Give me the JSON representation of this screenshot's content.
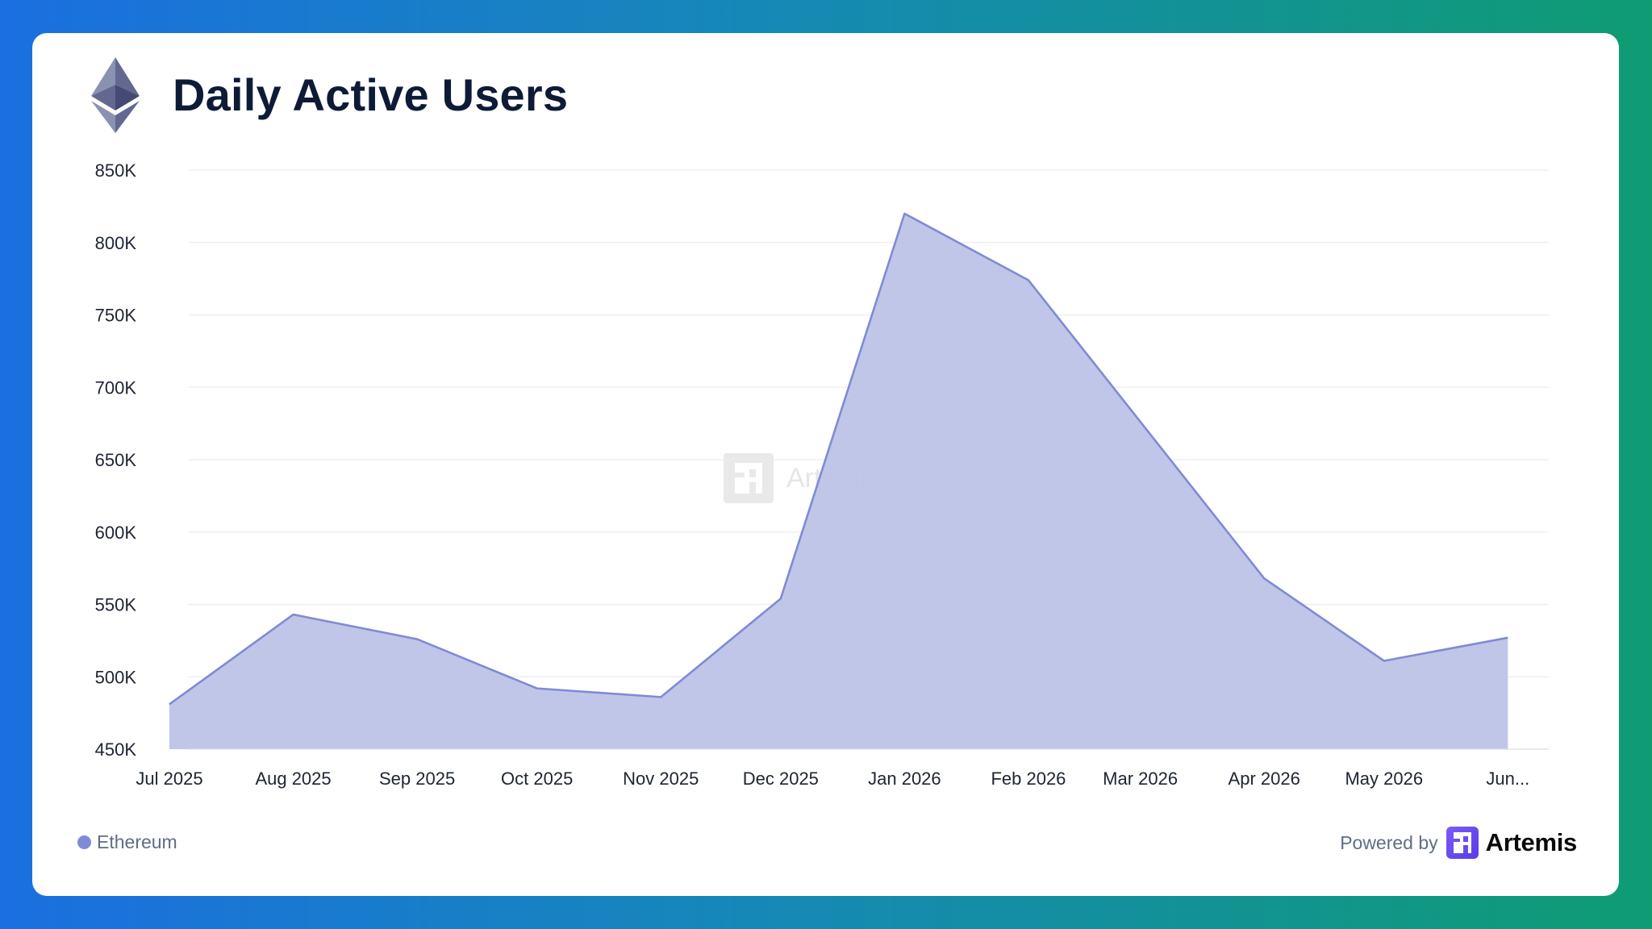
{
  "header": {
    "title": "Daily Active Users",
    "logo_icon": "ethereum-icon"
  },
  "watermark": {
    "text": "Artemis",
    "icon": "artemis-logo-icon"
  },
  "legend": {
    "label": "Ethereum",
    "color": "#7f8bd4"
  },
  "footer": {
    "powered_by": "Powered by",
    "brand": "Artemis",
    "brand_color": "#6b4bf0"
  },
  "colors": {
    "line": "#7f8bd4",
    "fill": "#bcc3e7",
    "grid": "#ececf0",
    "axis_text": "#1d2433",
    "title": "#0d1b36"
  },
  "chart_data": {
    "type": "area",
    "title": "Daily Active Users",
    "xlabel": "",
    "ylabel": "",
    "ylim": [
      450000,
      850000
    ],
    "yticks": [
      450000,
      500000,
      550000,
      600000,
      650000,
      700000,
      750000,
      800000,
      850000
    ],
    "ytick_labels": [
      "450K",
      "500K",
      "550K",
      "600K",
      "650K",
      "700K",
      "750K",
      "800K",
      "850K"
    ],
    "xlim": [
      "2025-07-01",
      "2026-06-08"
    ],
    "xtick_dates": [
      "2025-07-01",
      "2025-08-01",
      "2025-09-01",
      "2025-10-01",
      "2025-11-01",
      "2025-12-01",
      "2026-01-01",
      "2026-02-01",
      "2026-03-01",
      "2026-04-01",
      "2026-05-01",
      "2026-06-01"
    ],
    "xtick_labels": [
      "Jul 2025",
      "Aug 2025",
      "Sep 2025",
      "Oct 2025",
      "Nov 2025",
      "Dec 2025",
      "Jan 2026",
      "Feb 2026",
      "Mar 2026",
      "Apr 2026",
      "May 2026",
      "Jun..."
    ],
    "grid": true,
    "legend_position": "bottom-left",
    "series": [
      {
        "name": "Ethereum",
        "x": [
          "2025-07-01",
          "2025-08-01",
          "2025-09-01",
          "2025-10-01",
          "2025-11-01",
          "2025-12-01",
          "2026-01-01",
          "2026-02-01",
          "2026-04-01",
          "2026-05-01",
          "2026-06-01"
        ],
        "values": [
          481000,
          543000,
          526000,
          492000,
          486000,
          554000,
          820000,
          774000,
          568000,
          511000,
          527000
        ]
      }
    ]
  }
}
